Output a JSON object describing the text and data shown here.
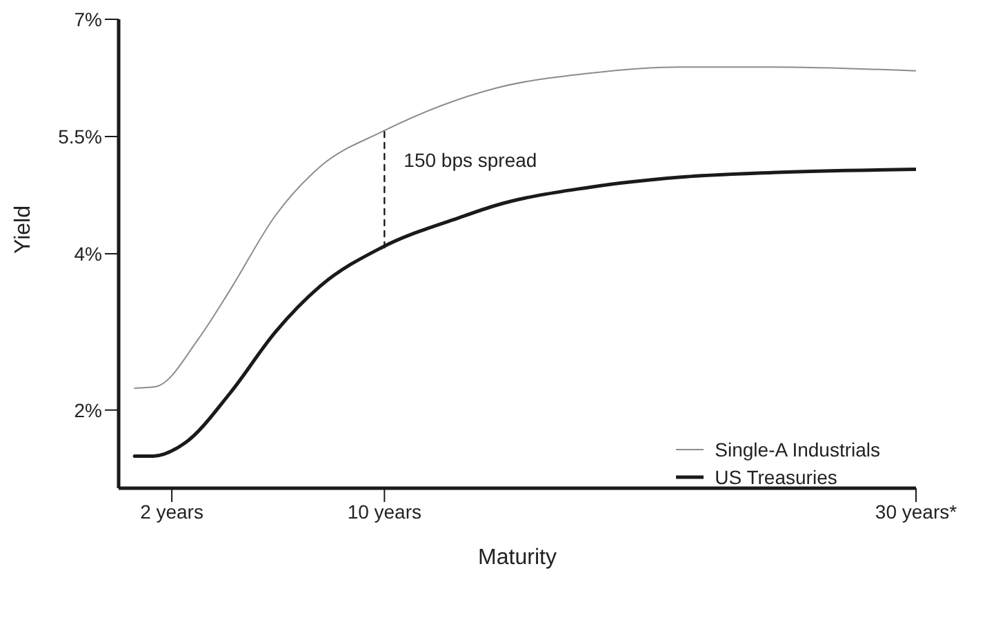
{
  "chart_data": {
    "type": "line",
    "xlabel": "Maturity",
    "ylabel": "Yield",
    "xlim": [
      0,
      30
    ],
    "ylim": [
      1,
      7
    ],
    "xticks": [
      {
        "value": 2,
        "label": "2 years"
      },
      {
        "value": 10,
        "label": "10 years"
      },
      {
        "value": 30,
        "label": "30 years*"
      }
    ],
    "yticks": [
      {
        "value": 2,
        "label": "2%"
      },
      {
        "value": 4,
        "label": "4%"
      },
      {
        "value": 5.5,
        "label": "5.5%"
      },
      {
        "value": 7,
        "label": "7%"
      }
    ],
    "series": [
      {
        "name": "Single-A Industrials",
        "color": "#8c8c8c",
        "x": [
          0.6,
          1.4,
          3,
          4.2,
          5.9,
          7.6,
          9.9,
          14.2,
          17.7,
          21.1,
          24.6,
          30
        ],
        "values": [
          2.28,
          2.3,
          2.91,
          3.54,
          4.49,
          5.12,
          5.56,
          6.12,
          6.31,
          6.39,
          6.39,
          6.34
        ]
      },
      {
        "name": "US Treasuries",
        "color": "#1a1a1a",
        "x": [
          0.6,
          1.3,
          2.5,
          4.2,
          5.9,
          7.6,
          9.9,
          12.8,
          14.2,
          17.7,
          21.1,
          24.6,
          30
        ],
        "values": [
          1.41,
          1.41,
          1.58,
          2.22,
          3.0,
          3.59,
          4.08,
          4.46,
          4.62,
          4.85,
          4.98,
          5.04,
          5.08
        ]
      },
      {
        "type": "line",
        "line_style": "dashed",
        "color": "#1a1a1a",
        "x": [
          10,
          10
        ],
        "values": [
          4.08,
          5.56
        ]
      }
    ],
    "annotations": [
      {
        "text": "150 bps spread",
        "x": 10,
        "y": 5.2
      }
    ],
    "legend": "bottom right",
    "marker": "none",
    "line_style": "solid",
    "grid": false
  }
}
